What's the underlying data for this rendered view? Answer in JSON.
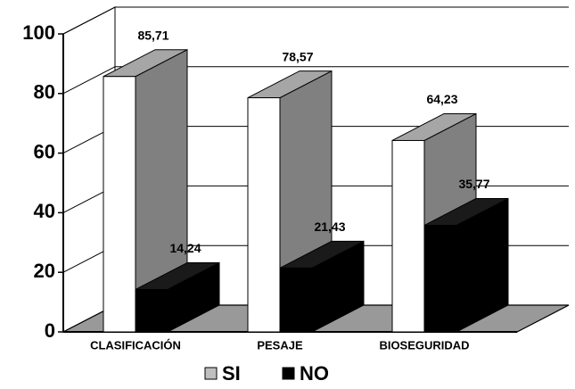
{
  "chart_data": {
    "type": "bar3d",
    "categories": [
      "CLASIFICACIÓN",
      "PESAJE",
      "BIOSEGURIDAD"
    ],
    "series": [
      {
        "name": "SI",
        "color": "#ffffff",
        "values": [
          85.71,
          78.57,
          64.23
        ],
        "value_labels": [
          "85,71",
          "78,57",
          "64,23"
        ]
      },
      {
        "name": "NO",
        "color": "#000000",
        "values": [
          14.24,
          21.43,
          35.77
        ],
        "value_labels": [
          "14,24",
          "21,43",
          "35,77"
        ]
      }
    ],
    "ylim": [
      0,
      100
    ],
    "yticks": [
      0,
      20,
      40,
      60,
      80,
      100
    ],
    "grid": true
  }
}
